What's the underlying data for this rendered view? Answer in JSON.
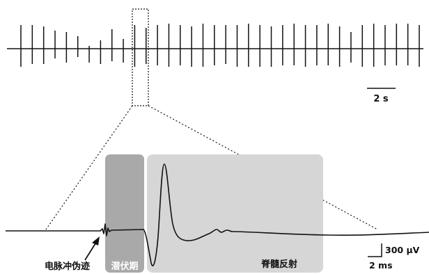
{
  "scalebars": {
    "top_time": "2 s",
    "bottom_voltage": "300 μV",
    "bottom_time": "2 ms"
  },
  "labels": {
    "artifact": "电脉冲伪迹",
    "latency": "潜伏期",
    "reflex": "脊髓反射"
  },
  "colors": {
    "trace": "#111111",
    "latency_shade": "#a9a9a9",
    "reflex_shade": "#d6d6d6"
  },
  "top_trace": {
    "spike_heights": [
      [
        34,
        26
      ],
      [
        34,
        22
      ],
      [
        32,
        22
      ],
      [
        26,
        14
      ],
      [
        24,
        20
      ],
      [
        18,
        12
      ],
      [
        4,
        20
      ],
      [
        12,
        22
      ],
      [
        28,
        18
      ],
      [
        14,
        20
      ],
      [
        34,
        26
      ],
      [
        30,
        22
      ],
      [
        34,
        24
      ],
      [
        36,
        26
      ],
      [
        34,
        24
      ],
      [
        32,
        26
      ],
      [
        36,
        26
      ],
      [
        34,
        24
      ],
      [
        34,
        22
      ],
      [
        34,
        26
      ],
      [
        36,
        26
      ],
      [
        34,
        26
      ],
      [
        32,
        26
      ],
      [
        34,
        24
      ],
      [
        36,
        24
      ],
      [
        34,
        26
      ],
      [
        34,
        24
      ],
      [
        36,
        24
      ],
      [
        32,
        26
      ],
      [
        24,
        20
      ],
      [
        34,
        26
      ],
      [
        36,
        26
      ],
      [
        34,
        24
      ],
      [
        36,
        24
      ],
      [
        36,
        24
      ],
      [
        34,
        26
      ]
    ]
  }
}
